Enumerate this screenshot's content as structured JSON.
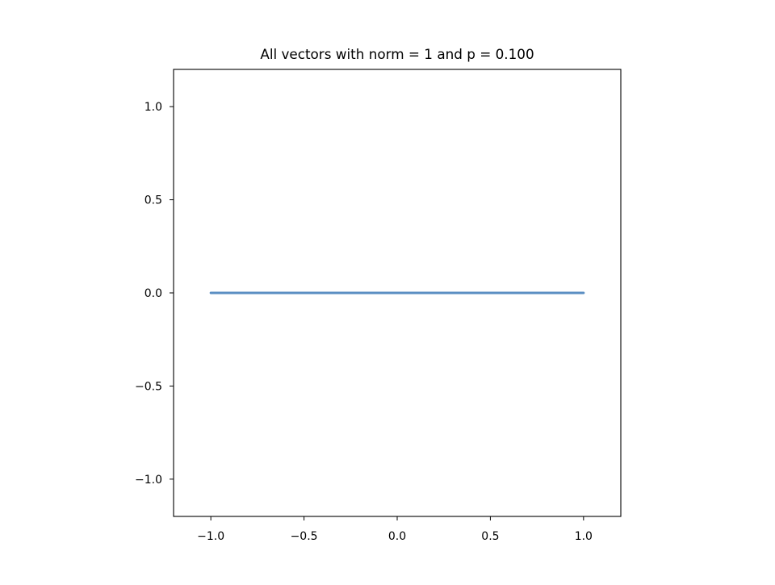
{
  "chart_data": {
    "type": "line",
    "title": "All vectors with norm = 1 and p = 0.100",
    "xlabel": "",
    "ylabel": "",
    "xlim": [
      -1.2,
      1.2
    ],
    "ylim": [
      -1.2,
      1.2
    ],
    "xticks": [
      -1.0,
      -0.5,
      0.0,
      0.5,
      1.0
    ],
    "yticks": [
      -1.0,
      -0.5,
      0.0,
      0.5,
      1.0
    ],
    "xtick_labels": [
      "−1.0",
      "−0.5",
      "0.0",
      "0.5",
      "1.0"
    ],
    "ytick_labels": [
      "−1.0",
      "−0.5",
      "0.0",
      "0.5",
      "1.0"
    ],
    "grid": false,
    "series": [
      {
        "color": "#5b8fc3",
        "x": [
          -1.0,
          -0.5,
          0.0,
          0.5,
          1.0
        ],
        "y": [
          0.0,
          0.0,
          0.0,
          0.0,
          0.0
        ]
      }
    ]
  }
}
